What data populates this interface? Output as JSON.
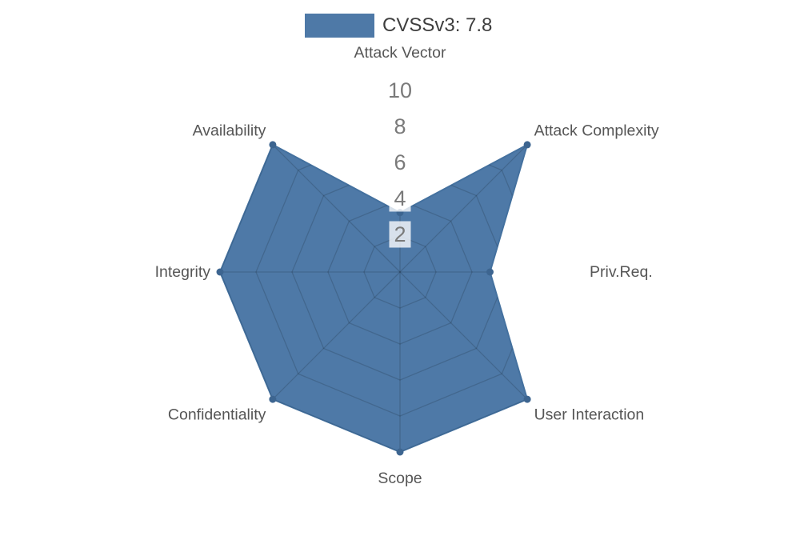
{
  "chart_data": {
    "type": "radar",
    "title": "",
    "legend": {
      "label": "CVSSv3: 7.8",
      "position": "top-center",
      "swatch_color": "#4e79a7"
    },
    "axes": [
      "Attack Vector",
      "Attack Complexity",
      "Priv.Req.",
      "User Interaction",
      "Scope",
      "Confidentiality",
      "Integrity",
      "Availability"
    ],
    "values": [
      3.3,
      10,
      5,
      10,
      10,
      10,
      10,
      10
    ],
    "rlim": [
      0,
      10
    ],
    "ring_ticks": [
      2,
      4,
      6,
      8,
      10
    ],
    "tick_labels": [
      "10",
      "8",
      "6",
      "4",
      "2"
    ],
    "grid_style": "polygonal web with 8 spokes, visible only inside filled data area",
    "marker": "dot",
    "colors": {
      "series_fill": "#4e79a7",
      "series_edge": "#44719f",
      "marker": "#3d6590",
      "grid_line_over_fill": "rgba(0,0,0,0.15)",
      "axis_label": "#565656",
      "tick_label": "#7a7a7a",
      "tick_bg": "rgba(255,255,255,0.78)",
      "legend_text": "#3e3e3e",
      "background": "#ffffff"
    }
  }
}
